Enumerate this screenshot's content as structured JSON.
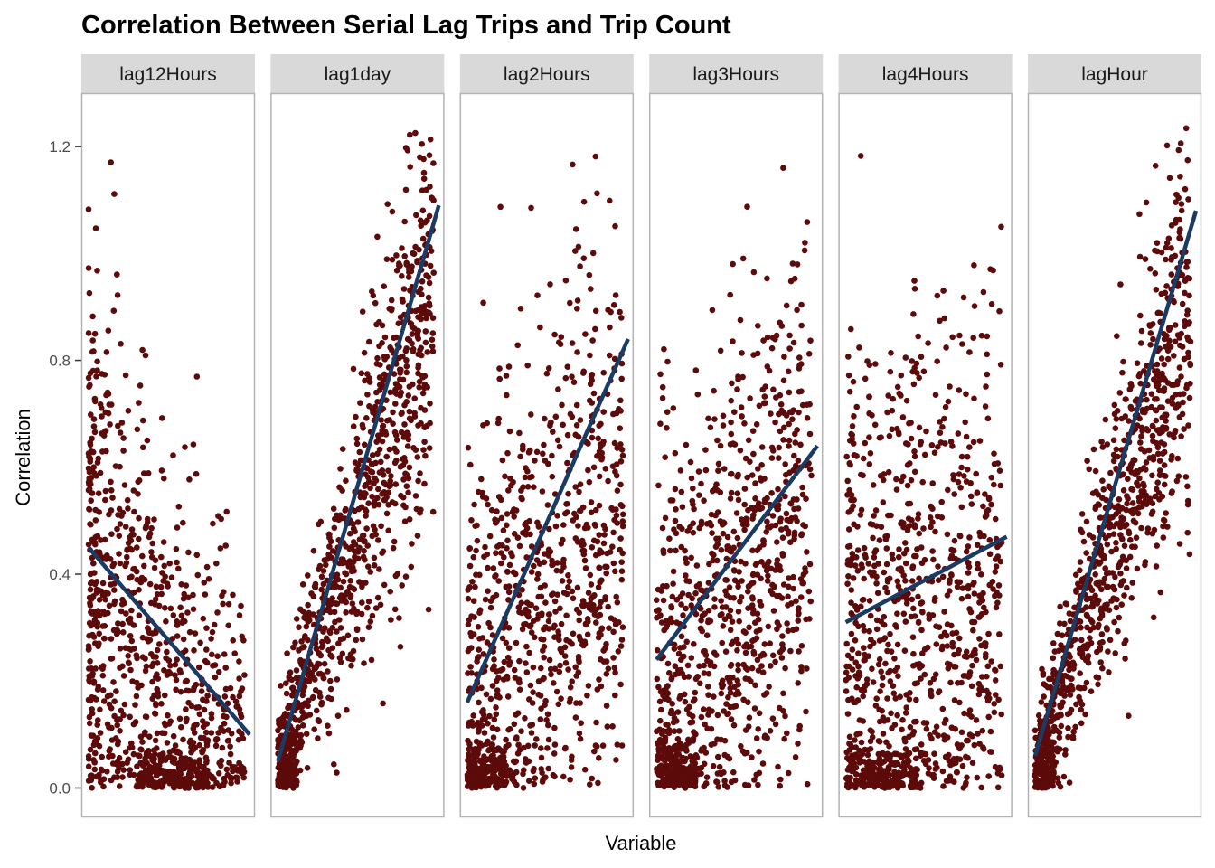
{
  "chart_data": {
    "type": "scatter",
    "title": "Correlation Between Serial Lag Trips and Trip Count",
    "xlabel": "Variable",
    "ylabel": "Correlation",
    "ylim": [
      -0.055,
      1.3
    ],
    "y_ticks": [
      0.0,
      0.4,
      0.8,
      1.2
    ],
    "y_tick_labels": [
      "0.0",
      "0.4",
      "0.8",
      "1.2"
    ],
    "x_ticks": [],
    "grid": false,
    "legend": "none",
    "point_color": "#5c0a0a",
    "line_color": "#1a3b63",
    "panels": [
      {
        "label": "lag12Hours",
        "fit": [
          0.45,
          0.1
        ],
        "shape": "decreasing",
        "seed": 11
      },
      {
        "label": "lag1day",
        "fit": [
          0.05,
          1.09
        ],
        "shape": "increasing",
        "seed": 23
      },
      {
        "label": "lag2Hours",
        "fit": [
          0.16,
          0.84
        ],
        "shape": "increasing-wide",
        "seed": 37
      },
      {
        "label": "lag3Hours",
        "fit": [
          0.24,
          0.64
        ],
        "shape": "increasing-wide",
        "seed": 41
      },
      {
        "label": "lag4Hours",
        "fit": [
          0.31,
          0.47
        ],
        "shape": "flat",
        "seed": 53
      },
      {
        "label": "lagHour",
        "fit": [
          0.06,
          1.08
        ],
        "shape": "increasing",
        "seed": 67
      }
    ]
  }
}
